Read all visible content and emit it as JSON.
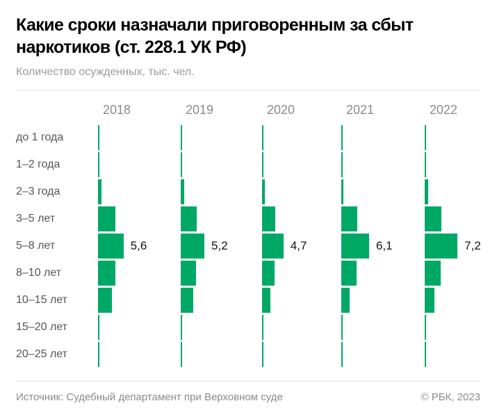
{
  "header": {
    "title": "Какие сроки назначали приговоренным за сбыт наркотиков (ст. 228.1 УК РФ)",
    "subtitle": "Количество осужденных, тыс. чел."
  },
  "chart_data": {
    "type": "bar",
    "orientation": "horizontal",
    "layout": "small-multiples",
    "title": "Какие сроки назначали приговоренным за сбыт наркотиков (ст. 228.1 УК РФ)",
    "subtitle": "Количество осужденных, тыс. чел.",
    "categories": [
      "до 1 года",
      "1–2 года",
      "2–3 года",
      "3–5 лет",
      "5–8 лет",
      "8–10 лет",
      "10–15 лет",
      "15–20 лет",
      "20–25 лет"
    ],
    "series": [
      {
        "name": "2018",
        "values": [
          0.1,
          0.3,
          0.8,
          3.8,
          5.6,
          3.8,
          3.1,
          0.1,
          0.05
        ],
        "label_index": 4,
        "label": "5,6"
      },
      {
        "name": "2019",
        "values": [
          0.1,
          0.3,
          0.7,
          3.5,
          5.2,
          3.4,
          2.7,
          0.1,
          0.05
        ],
        "label_index": 4,
        "label": "5,2"
      },
      {
        "name": "2020",
        "values": [
          0.05,
          0.1,
          0.6,
          2.9,
          4.7,
          2.7,
          1.8,
          0.1,
          0.05
        ],
        "label_index": 4,
        "label": "4,7"
      },
      {
        "name": "2021",
        "values": [
          0.05,
          0.1,
          0.5,
          3.5,
          6.1,
          3.4,
          1.9,
          0.1,
          0.05
        ],
        "label_index": 4,
        "label": "6,1"
      },
      {
        "name": "2022",
        "values": [
          0.05,
          0.1,
          0.7,
          3.7,
          7.2,
          3.5,
          2.1,
          0.1,
          0.05
        ],
        "label_index": 4,
        "label": "7,2"
      }
    ],
    "grid": false,
    "legend": "none",
    "colors": {
      "bar": "#00a865"
    }
  },
  "footer": {
    "source": "Источник: Судебный департамент при Верховном суде",
    "copyright": "© РБК, 2023"
  }
}
